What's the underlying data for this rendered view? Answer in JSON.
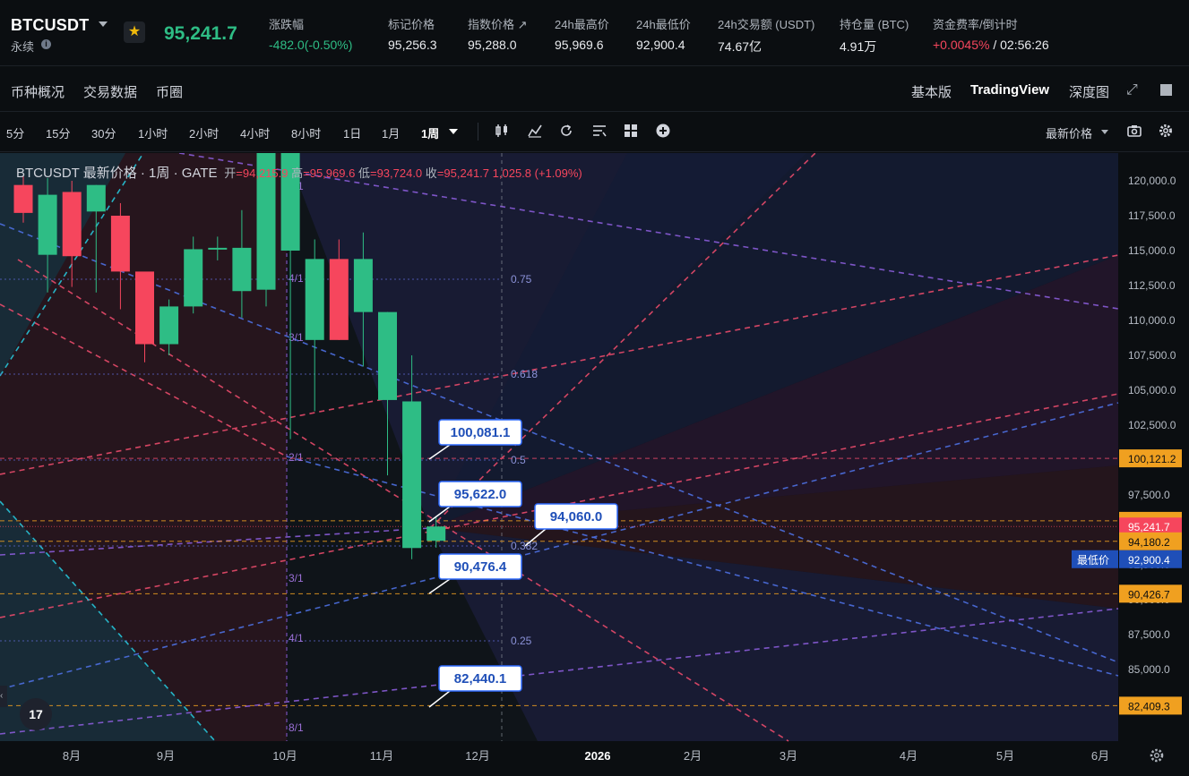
{
  "header": {
    "symbol": "BTCUSDT",
    "contract_type": "永续",
    "last_price": "95,241.7",
    "stats": [
      {
        "label": "涨跌幅",
        "value": "-482.0(-0.50%)"
      },
      {
        "label": "标记价格",
        "value": "95,256.3"
      },
      {
        "label": "指数价格 ↗",
        "value": "95,288.0"
      },
      {
        "label": "24h最高价",
        "value": "95,969.6"
      },
      {
        "label": "24h最低价",
        "value": "92,900.4"
      },
      {
        "label": "24h交易额 (USDT)",
        "value": "74.67亿"
      },
      {
        "label": "持仓量 (BTC)",
        "value": "4.91万"
      },
      {
        "label": "资金费率/倒计时",
        "value_rate": "+0.0045%",
        "value_sep": " / ",
        "value_countdown": "02:56:26"
      }
    ]
  },
  "tabs": {
    "left": [
      "币种概况",
      "交易数据",
      "币圈"
    ],
    "right": [
      "基本版",
      "TradingView",
      "深度图"
    ],
    "active": "TradingView"
  },
  "toolbar": {
    "intervals": [
      "5分",
      "15分",
      "30分",
      "1小时",
      "2小时",
      "4小时",
      "8小时",
      "1日",
      "1月",
      "1周"
    ],
    "active_interval": "1周",
    "price_type": "最新价格",
    "icons": [
      "candle-type-icon",
      "indicators-icon",
      "replay-icon",
      "templates-icon",
      "layout-icon",
      "add-icon",
      "camera-icon",
      "settings-icon"
    ]
  },
  "legend": {
    "symbol_line": "BTCUSDT 最新价格 · 1周 · GATE",
    "open_label": "开",
    "open": "94,215.9",
    "high_label": "高",
    "high": "95,969.6",
    "low_label": "低",
    "low": "93,724.0",
    "close_label": "收",
    "close": "95,241.7",
    "change": "1,025.8 (+1.09%)"
  },
  "colors": {
    "up": "#2ebd85",
    "down": "#f6465d",
    "background": "#0b0e11",
    "orange_label": "#f0a020",
    "blue_label": "#1f4fb8",
    "fan_red": "#e84a6a",
    "fan_blue": "#4c6fe0",
    "fan_purple": "#8a5cd8",
    "fan_cyan": "#27c4d8"
  },
  "chart_data": {
    "type": "candlestick",
    "interval": "1周",
    "y_axis_ticks": [
      85000,
      87500,
      90000,
      92500,
      95000,
      97500,
      100000,
      102500,
      105000,
      107500,
      110000,
      112500,
      115000,
      117500,
      120000
    ],
    "x_axis_labels": [
      "8月",
      "9月",
      "10月",
      "11月",
      "12月",
      "2026",
      "2月",
      "3月",
      "4月",
      "5月",
      "6月"
    ],
    "candles": [
      {
        "o": 119700,
        "h": 120400,
        "l": 117000,
        "c": 117700
      },
      {
        "o": 114700,
        "h": 120200,
        "l": 112000,
        "c": 119000
      },
      {
        "o": 119200,
        "h": 120000,
        "l": 112400,
        "c": 114600
      },
      {
        "o": 117800,
        "h": 119700,
        "l": 112000,
        "c": 119700
      },
      {
        "o": 117500,
        "h": 118400,
        "l": 110800,
        "c": 113500
      },
      {
        "o": 113500,
        "h": 113300,
        "l": 107000,
        "c": 108300
      },
      {
        "o": 108300,
        "h": 111500,
        "l": 107500,
        "c": 111000
      },
      {
        "o": 111000,
        "h": 116000,
        "l": 110500,
        "c": 115100
      },
      {
        "o": 115100,
        "h": 116000,
        "l": 114300,
        "c": 115200
      },
      {
        "o": 112100,
        "h": 117900,
        "l": 110200,
        "c": 115200
      },
      {
        "o": 112200,
        "h": 126000,
        "l": 111000,
        "c": 125000
      },
      {
        "o": 115000,
        "h": 126200,
        "l": 101500,
        "c": 126000
      },
      {
        "o": 108600,
        "h": 115800,
        "l": 103500,
        "c": 114400
      },
      {
        "o": 114400,
        "h": 115800,
        "l": 108600,
        "c": 108600
      },
      {
        "o": 110600,
        "h": 116300,
        "l": 106700,
        "c": 114400
      },
      {
        "o": 104300,
        "h": 110600,
        "l": 98900,
        "c": 110600
      },
      {
        "o": 93700,
        "h": 107500,
        "l": 92900,
        "c": 104200
      },
      {
        "o": 94215.9,
        "h": 95969.6,
        "l": 93724.0,
        "c": 95241.7
      }
    ],
    "horizontal_levels": [
      100121.2,
      95646.8,
      94180.2,
      90426.7,
      82409.3
    ],
    "price_labels_axis": [
      {
        "value": "100,121.2",
        "style": "orange"
      },
      {
        "value": "95,646.8",
        "style": "orange"
      },
      {
        "value": "95,241.7",
        "style": "red"
      },
      {
        "value": "94,180.2",
        "style": "orange"
      },
      {
        "value": "92,900.4",
        "style": "blue",
        "prefix": "最低价"
      },
      {
        "value": "90,426.7",
        "style": "orange"
      },
      {
        "value": "82,409.3",
        "style": "orange"
      }
    ],
    "callouts": [
      "100,081.1",
      "95,622.0",
      "94,060.0",
      "90,476.4",
      "82,440.1"
    ],
    "fib_labels": [
      "0.75",
      "0.618",
      "0.5",
      "0.382",
      "0.25"
    ],
    "gann_labels": [
      "1/1",
      "4/1",
      "3/1",
      "2/1",
      "3/1",
      "4/1",
      "8/1"
    ]
  }
}
